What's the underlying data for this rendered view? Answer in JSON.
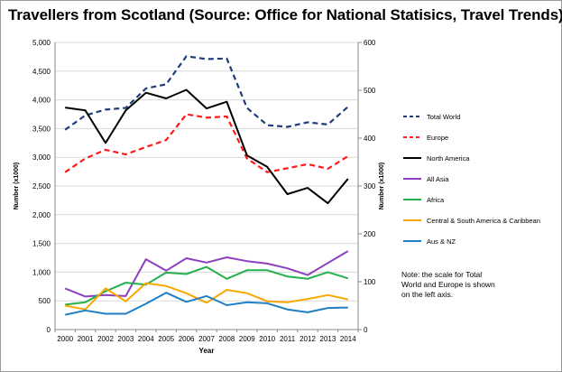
{
  "chart_data": {
    "type": "line",
    "title": "Travellers from Scotland (Source: Office for National Statisics, Travel Trends)",
    "xlabel": "Year",
    "ylabel_left": "Number (x1000)",
    "ylabel_right": "Number (x1000)",
    "x": [
      2000,
      2001,
      2002,
      2003,
      2004,
      2005,
      2006,
      2007,
      2008,
      2009,
      2010,
      2011,
      2012,
      2013,
      2014
    ],
    "ylim_left": [
      0,
      5000
    ],
    "yticks_left": [
      "0",
      "500",
      "1,000",
      "1,500",
      "2,000",
      "2,500",
      "3,000",
      "3,500",
      "4,000",
      "4,500",
      "5,000"
    ],
    "ylim_right": [
      0,
      600
    ],
    "yticks_right": [
      "0",
      "100",
      "200",
      "300",
      "400",
      "500",
      "600"
    ],
    "grid": "horizontal",
    "legend_position": "right",
    "series": [
      {
        "name": "Total World",
        "axis": "left",
        "style": "dashed",
        "color": "#1f3d7a",
        "values": [
          3480,
          3730,
          3830,
          3860,
          4200,
          4270,
          4760,
          4710,
          4720,
          3860,
          3560,
          3530,
          3610,
          3570,
          3880
        ]
      },
      {
        "name": "Europe",
        "axis": "left",
        "style": "dashed",
        "color": "#ff1a1a",
        "values": [
          2740,
          2980,
          3130,
          3050,
          3180,
          3300,
          3750,
          3690,
          3710,
          2980,
          2740,
          2810,
          2880,
          2800,
          3020
        ]
      },
      {
        "name": "North America",
        "axis": "right",
        "style": "solid",
        "color": "#000000",
        "values": [
          464,
          458,
          390,
          458,
          495,
          483,
          501,
          462,
          476,
          364,
          340,
          283,
          296,
          264,
          315
        ]
      },
      {
        "name": "All Asia",
        "axis": "right",
        "style": "solid",
        "color": "#8e3fc0",
        "values": [
          86,
          69,
          72,
          70,
          147,
          123,
          149,
          140,
          151,
          143,
          138,
          128,
          114,
          139,
          164
        ]
      },
      {
        "name": "Africa",
        "axis": "right",
        "style": "solid",
        "color": "#22b14c",
        "values": [
          52,
          57,
          80,
          98,
          94,
          119,
          116,
          131,
          106,
          124,
          124,
          111,
          106,
          120,
          107
        ]
      },
      {
        "name": "Central & South America & Caribbean",
        "axis": "right",
        "style": "solid",
        "color": "#f7a800",
        "values": [
          50,
          42,
          86,
          59,
          97,
          91,
          76,
          56,
          83,
          76,
          59,
          57,
          64,
          72,
          63
        ]
      },
      {
        "name": "Aus & NZ",
        "axis": "right",
        "style": "solid",
        "color": "#1f7fc6",
        "values": [
          31,
          40,
          33,
          33,
          54,
          77,
          58,
          70,
          51,
          57,
          55,
          42,
          36,
          45,
          46
        ]
      }
    ],
    "note": [
      "Note: the scale for Total",
      "World and Europe is  shown",
      "on the left axis."
    ]
  }
}
